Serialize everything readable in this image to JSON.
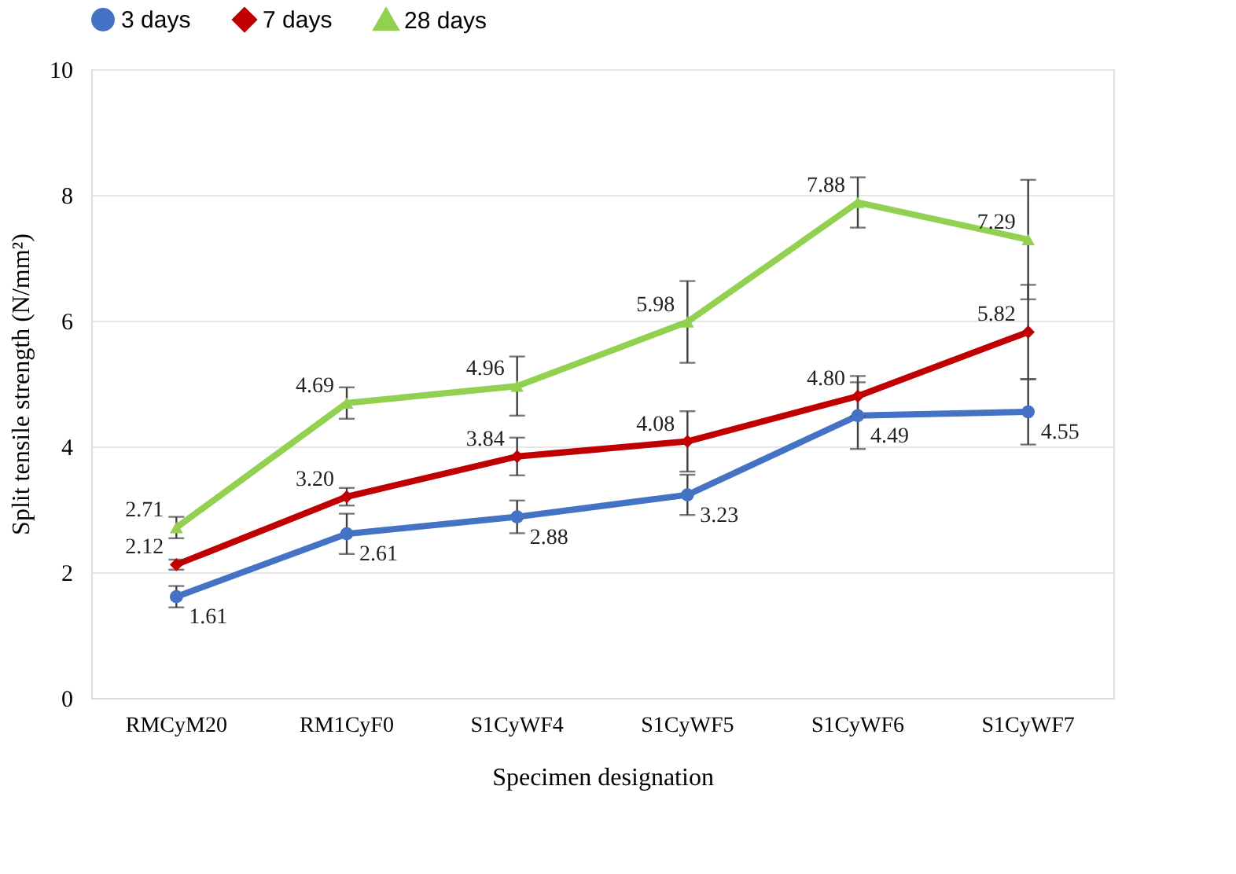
{
  "chart_data": {
    "type": "line",
    "xlabel": "Specimen designation",
    "ylabel": "Split tensile strength (N/mm²)",
    "categories": [
      "RMCyM20",
      "RM1CyF0",
      "S1CyWF4",
      "S1CyWF5",
      "S1CyWF6",
      "S1CyWF7"
    ],
    "series": [
      {
        "name": "3 days",
        "color": "#4472c4",
        "marker": "circle",
        "values": [
          1.61,
          2.61,
          2.88,
          3.23,
          4.49,
          4.55
        ],
        "errors": [
          0.17,
          0.32,
          0.26,
          0.32,
          0.53,
          0.52
        ],
        "value_labels": [
          "1.61",
          "2.61",
          "2.88",
          "3.23",
          "4.49",
          "4.55"
        ]
      },
      {
        "name": "7 days",
        "color": "#c00000",
        "marker": "diamond",
        "values": [
          2.12,
          3.2,
          3.84,
          4.08,
          4.8,
          5.82
        ],
        "errors": [
          0.08,
          0.14,
          0.3,
          0.48,
          0.32,
          0.75
        ],
        "value_labels": [
          "2.12",
          "3.20",
          "3.84",
          "4.08",
          "4.80",
          "5.82"
        ]
      },
      {
        "name": "28 days",
        "color": "#92d050",
        "marker": "triangle",
        "values": [
          2.71,
          4.69,
          4.96,
          5.98,
          7.88,
          7.29
        ],
        "errors": [
          0.17,
          0.25,
          0.47,
          0.65,
          0.4,
          0.95
        ],
        "value_labels": [
          "2.71",
          "4.69",
          "4.96",
          "5.98",
          "7.88",
          "7.29"
        ]
      }
    ],
    "ylim": [
      0,
      10
    ],
    "yticks": [
      0,
      2,
      4,
      6,
      8,
      10
    ],
    "grid": "y",
    "legend": "top",
    "line_style": "solid"
  }
}
